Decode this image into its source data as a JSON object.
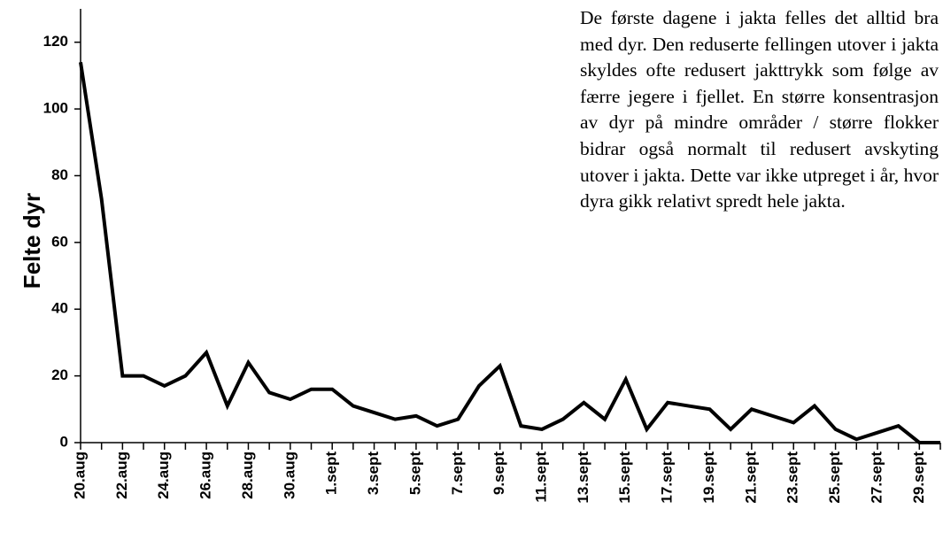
{
  "chart_data": {
    "type": "line",
    "y_label": "Felte dyr",
    "annotation": "De første dagene i jakta felles det alltid bra med dyr. Den reduserte fellingen utover i jakta skyldes ofte redusert jakttrykk som følge av færre jegere i fjellet. En større konsentrasjon av dyr på mindre områder / større flokker bidrar også normalt til redusert avskyting utover i jakta. Dette var ikke utpreget i år, hvor dyra gikk relativt spredt hele jakta.",
    "categories": [
      "20.aug",
      null,
      "22.aug",
      null,
      "24.aug",
      null,
      "26.aug",
      null,
      "28.aug",
      null,
      "30.aug",
      null,
      "1.sept",
      null,
      "3.sept",
      null,
      "5.sept",
      null,
      "7.sept",
      null,
      "9.sept",
      null,
      "11.sept",
      null,
      "13.sept",
      null,
      "15.sept",
      null,
      "17.sept",
      null,
      "19.sept",
      null,
      "21.sept",
      null,
      "23.sept",
      null,
      "25.sept",
      null,
      "27.sept",
      null,
      "29.sept",
      null
    ],
    "series": [
      {
        "name": "Felte dyr",
        "color": "#000000",
        "values": [
          114,
          73,
          20,
          20,
          17,
          20,
          27,
          11,
          24,
          15,
          13,
          16,
          16,
          11,
          9,
          7,
          8,
          5,
          7,
          17,
          23,
          5,
          4,
          7,
          12,
          7,
          19,
          4,
          12,
          11,
          10,
          4,
          10,
          8,
          6,
          11,
          4,
          1,
          3,
          5,
          0,
          0
        ]
      }
    ],
    "ylim": [
      0,
      130
    ],
    "yticks": [
      0,
      20,
      40,
      60,
      80,
      100,
      120
    ],
    "grid": false
  }
}
